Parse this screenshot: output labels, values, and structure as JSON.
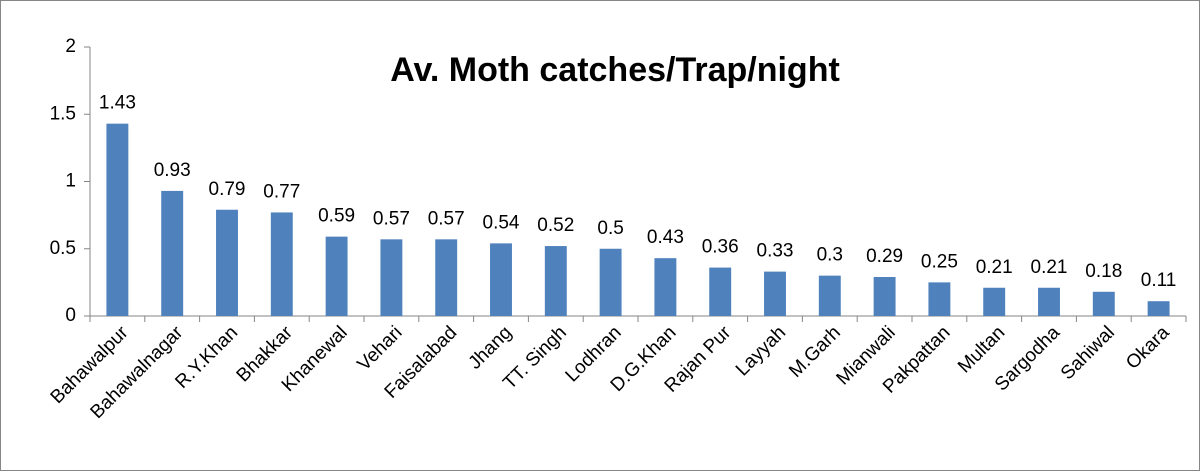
{
  "chart_data": {
    "type": "bar",
    "title": "Av. Moth catches/Trap/night",
    "categories": [
      "Bahawalpur",
      "Bahawalnagar",
      "R.Y.Khan",
      "Bhakkar",
      "Khanewal",
      "Vehari",
      "Faisalabad",
      "Jhang",
      "TT. Singh",
      "Lodhran",
      "D.G.Khan",
      "Rajan Pur",
      "Layyah",
      "M.Garh",
      "Mianwali",
      "Pakpattan",
      "Multan",
      "Sargodha",
      "Sahiwal",
      "Okara"
    ],
    "values": [
      1.43,
      0.93,
      0.79,
      0.77,
      0.59,
      0.57,
      0.57,
      0.54,
      0.52,
      0.5,
      0.43,
      0.36,
      0.33,
      0.3,
      0.29,
      0.25,
      0.21,
      0.21,
      0.18,
      0.11
    ],
    "color": "#4f81bd",
    "ylim": [
      0,
      2
    ],
    "yticks": [
      0,
      0.5,
      1,
      1.5,
      2
    ],
    "grid": false
  }
}
